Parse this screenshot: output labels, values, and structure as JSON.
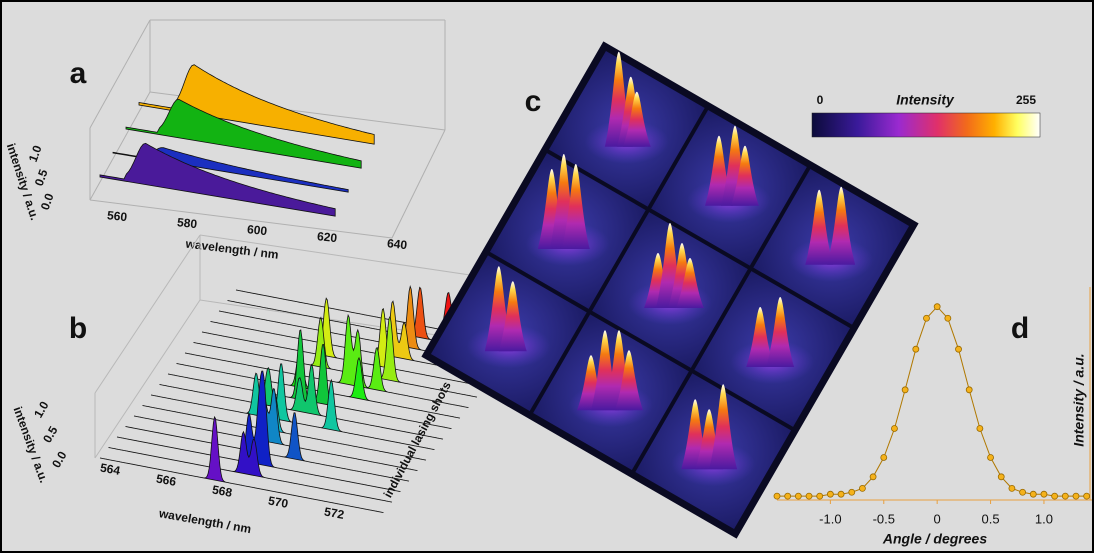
{
  "panels": {
    "a": {
      "label": "a",
      "y_label": "intensity / a.u.",
      "y_ticks": [
        "0.0",
        "0.5",
        "1.0"
      ],
      "x_label": "wavelength / nm",
      "x_ticks": [
        "560",
        "580",
        "600",
        "620",
        "640"
      ]
    },
    "b": {
      "label": "b",
      "y_label": "intensity / a.u.",
      "y_ticks": [
        "0.0",
        "0.5",
        "1.0"
      ],
      "x_label": "wavelength / nm",
      "x_ticks": [
        "564",
        "566",
        "568",
        "570",
        "572"
      ],
      "depth_label": "individual lasing shots"
    },
    "c": {
      "label": "c",
      "colorbar": {
        "title": "Intensity",
        "min": 0,
        "max": 255
      }
    }
  },
  "chart_data": {
    "type": "line",
    "label": "d",
    "xlabel": "Angle / degrees",
    "ylabel": "Intensity / a.u.",
    "x": [
      -1.5,
      -1.4,
      -1.3,
      -1.2,
      -1.1,
      -1.0,
      -0.9,
      -0.8,
      -0.7,
      -0.6,
      -0.5,
      -0.4,
      -0.3,
      -0.2,
      -0.1,
      0,
      0.1,
      0.2,
      0.3,
      0.4,
      0.5,
      0.6,
      0.7,
      0.8,
      0.9,
      1.0,
      1.1,
      1.2,
      1.3,
      1.4
    ],
    "values": [
      0.02,
      0.02,
      0.02,
      0.02,
      0.02,
      0.03,
      0.03,
      0.04,
      0.06,
      0.12,
      0.22,
      0.37,
      0.57,
      0.78,
      0.94,
      1.0,
      0.94,
      0.78,
      0.57,
      0.37,
      0.22,
      0.12,
      0.06,
      0.04,
      0.03,
      0.03,
      0.02,
      0.02,
      0.02,
      0.02
    ],
    "color": "#f5b21b",
    "xlim": [
      -1.5,
      1.45
    ],
    "ylim": [
      0,
      1.05
    ],
    "xticks": [
      {
        "value": -1,
        "label": "-1.0"
      },
      -0.5,
      0,
      0.5,
      {
        "value": 1,
        "label": "1.0"
      }
    ]
  }
}
